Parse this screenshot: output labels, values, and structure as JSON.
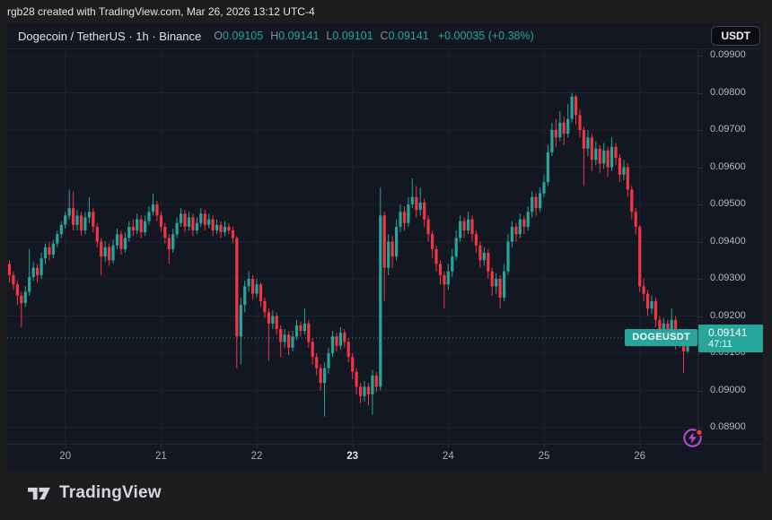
{
  "annotation_bar": {
    "text": "rgb28 created with TradingView.com, Mar 26, 2026 13:12 UTC-4"
  },
  "header": {
    "title": "Dogecoin / TetherUS · 1h · Binance",
    "ohlc": {
      "o": {
        "label": "O",
        "value": "0.09105"
      },
      "h": {
        "label": "H",
        "value": "0.09141"
      },
      "l": {
        "label": "L",
        "value": "0.09101"
      },
      "c": {
        "label": "C",
        "value": "0.09141"
      }
    },
    "change": "+0.00035 (+0.38%)",
    "currency_button": "USDT"
  },
  "price_line": {
    "symbol_label": "DOGEUSDT",
    "price": "0.09141",
    "countdown": "47:11"
  },
  "footer": {
    "brand": "TradingView"
  },
  "chart_data": {
    "type": "candlestick",
    "symbol": "DOGEUSDT",
    "exchange": "Binance",
    "interval": "1h",
    "up_color": "#26a69a",
    "down_color": "#f23645",
    "grid_color": "#1e2230",
    "last_price": 0.09141,
    "y_axis": {
      "ticks": [
        "0.09900",
        "0.09800",
        "0.09700",
        "0.09600",
        "0.09500",
        "0.09400",
        "0.09300",
        "0.09200",
        "0.09100",
        "0.09000",
        "0.08900"
      ]
    },
    "x_axis": {
      "labels": [
        {
          "text": "20",
          "candle_index": 14,
          "bold": false
        },
        {
          "text": "21",
          "candle_index": 38,
          "bold": false
        },
        {
          "text": "22",
          "candle_index": 62,
          "bold": false
        },
        {
          "text": "23",
          "candle_index": 86,
          "bold": true
        },
        {
          "text": "24",
          "candle_index": 110,
          "bold": false
        },
        {
          "text": "25",
          "candle_index": 134,
          "bold": false
        },
        {
          "text": "26",
          "candle_index": 158,
          "bold": false
        }
      ]
    },
    "candles": [
      [
        0.0934,
        0.0935,
        0.0929,
        0.0931
      ],
      [
        0.0931,
        0.0932,
        0.0927,
        0.09285
      ],
      [
        0.09285,
        0.09295,
        0.0923,
        0.09255
      ],
      [
        0.09255,
        0.09265,
        0.0917,
        0.09235
      ],
      [
        0.09235,
        0.0928,
        0.09225,
        0.09265
      ],
      [
        0.09265,
        0.0938,
        0.09255,
        0.09305
      ],
      [
        0.09305,
        0.09345,
        0.09295,
        0.0933
      ],
      [
        0.0933,
        0.0934,
        0.0929,
        0.0931
      ],
      [
        0.0931,
        0.0937,
        0.093,
        0.09355
      ],
      [
        0.09355,
        0.09395,
        0.0934,
        0.09385
      ],
      [
        0.09385,
        0.094,
        0.0935,
        0.09365
      ],
      [
        0.09365,
        0.09405,
        0.09355,
        0.09395
      ],
      [
        0.09395,
        0.0943,
        0.09385,
        0.0942
      ],
      [
        0.0942,
        0.09455,
        0.0941,
        0.09445
      ],
      [
        0.09445,
        0.0948,
        0.09435,
        0.0947
      ],
      [
        0.0947,
        0.0954,
        0.0946,
        0.0949
      ],
      [
        0.0949,
        0.09535,
        0.0943,
        0.09445
      ],
      [
        0.09445,
        0.09485,
        0.0943,
        0.0947
      ],
      [
        0.0947,
        0.0948,
        0.09415,
        0.0943
      ],
      [
        0.0943,
        0.0948,
        0.0942,
        0.09465
      ],
      [
        0.09465,
        0.0952,
        0.0945,
        0.0948
      ],
      [
        0.0948,
        0.0949,
        0.09425,
        0.0944
      ],
      [
        0.0944,
        0.0945,
        0.09385,
        0.094
      ],
      [
        0.094,
        0.0941,
        0.0931,
        0.0936
      ],
      [
        0.0936,
        0.094,
        0.09345,
        0.09385
      ],
      [
        0.09385,
        0.09395,
        0.09335,
        0.0935
      ],
      [
        0.0935,
        0.09405,
        0.0934,
        0.0939
      ],
      [
        0.0939,
        0.09435,
        0.0938,
        0.0942
      ],
      [
        0.0942,
        0.0943,
        0.09365,
        0.0938
      ],
      [
        0.0938,
        0.09425,
        0.0937,
        0.0941
      ],
      [
        0.0941,
        0.09455,
        0.094,
        0.0944
      ],
      [
        0.0944,
        0.0946,
        0.09415,
        0.0943
      ],
      [
        0.0943,
        0.09475,
        0.0942,
        0.0946
      ],
      [
        0.0946,
        0.0947,
        0.0941,
        0.09425
      ],
      [
        0.09425,
        0.0947,
        0.09415,
        0.09455
      ],
      [
        0.09455,
        0.09495,
        0.09445,
        0.0948
      ],
      [
        0.0948,
        0.0953,
        0.0947,
        0.095
      ],
      [
        0.095,
        0.0951,
        0.09455,
        0.0947
      ],
      [
        0.0947,
        0.0948,
        0.09425,
        0.0944
      ],
      [
        0.0944,
        0.0945,
        0.09395,
        0.0941
      ],
      [
        0.0941,
        0.0942,
        0.0934,
        0.0938
      ],
      [
        0.0938,
        0.09435,
        0.0937,
        0.0942
      ],
      [
        0.0942,
        0.09465,
        0.0941,
        0.0945
      ],
      [
        0.0945,
        0.0949,
        0.0944,
        0.09475
      ],
      [
        0.09475,
        0.09485,
        0.09425,
        0.0944
      ],
      [
        0.0944,
        0.0948,
        0.0943,
        0.09465
      ],
      [
        0.09465,
        0.09475,
        0.09415,
        0.0943
      ],
      [
        0.0943,
        0.09465,
        0.0942,
        0.0945
      ],
      [
        0.0945,
        0.0949,
        0.0944,
        0.09475
      ],
      [
        0.09475,
        0.09485,
        0.0943,
        0.09445
      ],
      [
        0.09445,
        0.09475,
        0.09435,
        0.0946
      ],
      [
        0.0946,
        0.0947,
        0.09415,
        0.0943
      ],
      [
        0.0943,
        0.0946,
        0.0942,
        0.09445
      ],
      [
        0.09445,
        0.09455,
        0.0941,
        0.09425
      ],
      [
        0.09425,
        0.09455,
        0.09415,
        0.0944
      ],
      [
        0.0944,
        0.0945,
        0.0942,
        0.0943
      ],
      [
        0.0943,
        0.0944,
        0.09395,
        0.0941
      ],
      [
        0.0941,
        0.09415,
        0.0906,
        0.09145
      ],
      [
        0.09145,
        0.0925,
        0.0907,
        0.0923
      ],
      [
        0.0923,
        0.09295,
        0.0921,
        0.0928
      ],
      [
        0.0928,
        0.0932,
        0.09265,
        0.093
      ],
      [
        0.093,
        0.0931,
        0.09245,
        0.0926
      ],
      [
        0.0926,
        0.093,
        0.0925,
        0.09285
      ],
      [
        0.09285,
        0.0929,
        0.09225,
        0.0924
      ],
      [
        0.0924,
        0.0925,
        0.09195,
        0.0921
      ],
      [
        0.0921,
        0.0922,
        0.0908,
        0.0918
      ],
      [
        0.0918,
        0.09215,
        0.09165,
        0.092
      ],
      [
        0.092,
        0.0921,
        0.0915,
        0.09165
      ],
      [
        0.09165,
        0.09175,
        0.0909,
        0.0913
      ],
      [
        0.0913,
        0.09165,
        0.09115,
        0.0915
      ],
      [
        0.0915,
        0.0916,
        0.09095,
        0.09115
      ],
      [
        0.09115,
        0.0916,
        0.09105,
        0.09145
      ],
      [
        0.09145,
        0.0919,
        0.09135,
        0.09175
      ],
      [
        0.09175,
        0.09185,
        0.09145,
        0.0916
      ],
      [
        0.0916,
        0.0922,
        0.0915,
        0.0918
      ],
      [
        0.0918,
        0.0919,
        0.09115,
        0.0913
      ],
      [
        0.0913,
        0.0914,
        0.0907,
        0.0909
      ],
      [
        0.0909,
        0.091,
        0.0904,
        0.0906
      ],
      [
        0.0906,
        0.0907,
        0.09,
        0.0902
      ],
      [
        0.0902,
        0.09075,
        0.0893,
        0.0906
      ],
      [
        0.0906,
        0.09115,
        0.09045,
        0.091
      ],
      [
        0.091,
        0.0916,
        0.0909,
        0.09145
      ],
      [
        0.09145,
        0.09155,
        0.09105,
        0.0912
      ],
      [
        0.0912,
        0.0917,
        0.0911,
        0.09155
      ],
      [
        0.09155,
        0.09165,
        0.09115,
        0.0913
      ],
      [
        0.0913,
        0.0914,
        0.09075,
        0.0909
      ],
      [
        0.0909,
        0.091,
        0.0903,
        0.0905
      ],
      [
        0.0905,
        0.0906,
        0.0899,
        0.0901
      ],
      [
        0.0901,
        0.0902,
        0.08965,
        0.08985
      ],
      [
        0.08985,
        0.09025,
        0.0897,
        0.0901
      ],
      [
        0.0901,
        0.0902,
        0.0896,
        0.0899
      ],
      [
        0.0899,
        0.09055,
        0.08935,
        0.0904
      ],
      [
        0.0904,
        0.0905,
        0.08995,
        0.0901
      ],
      [
        0.0901,
        0.09545,
        0.09,
        0.0947
      ],
      [
        0.0947,
        0.0948,
        0.0924,
        0.0933
      ],
      [
        0.0933,
        0.0942,
        0.0931,
        0.094
      ],
      [
        0.094,
        0.09415,
        0.0933,
        0.0936
      ],
      [
        0.0936,
        0.0946,
        0.0935,
        0.0944
      ],
      [
        0.0944,
        0.095,
        0.09425,
        0.0948
      ],
      [
        0.0948,
        0.09495,
        0.0943,
        0.0945
      ],
      [
        0.0945,
        0.0952,
        0.0944,
        0.095
      ],
      [
        0.095,
        0.0957,
        0.0949,
        0.0952
      ],
      [
        0.0952,
        0.0955,
        0.09465,
        0.09485
      ],
      [
        0.09485,
        0.09545,
        0.0947,
        0.09505
      ],
      [
        0.09505,
        0.09515,
        0.0944,
        0.0946
      ],
      [
        0.0946,
        0.0947,
        0.094,
        0.0942
      ],
      [
        0.0942,
        0.0943,
        0.09355,
        0.0938
      ],
      [
        0.0938,
        0.0939,
        0.0932,
        0.0934
      ],
      [
        0.0934,
        0.0935,
        0.09285,
        0.0931
      ],
      [
        0.0931,
        0.0932,
        0.0922,
        0.09285
      ],
      [
        0.09285,
        0.0934,
        0.0927,
        0.0932
      ],
      [
        0.0932,
        0.0938,
        0.09305,
        0.0936
      ],
      [
        0.0936,
        0.0943,
        0.0935,
        0.0941
      ],
      [
        0.0941,
        0.0947,
        0.094,
        0.09455
      ],
      [
        0.09455,
        0.09465,
        0.0941,
        0.0943
      ],
      [
        0.0943,
        0.0948,
        0.0942,
        0.0946
      ],
      [
        0.0946,
        0.0947,
        0.094,
        0.0942
      ],
      [
        0.0942,
        0.0943,
        0.0937,
        0.0939
      ],
      [
        0.0939,
        0.094,
        0.0933,
        0.0935
      ],
      [
        0.0935,
        0.09385,
        0.09335,
        0.0937
      ],
      [
        0.0937,
        0.0938,
        0.093,
        0.0932
      ],
      [
        0.0932,
        0.0933,
        0.09255,
        0.0928
      ],
      [
        0.0928,
        0.09315,
        0.0926,
        0.093
      ],
      [
        0.093,
        0.0931,
        0.0922,
        0.0925
      ],
      [
        0.0925,
        0.0934,
        0.0924,
        0.0932
      ],
      [
        0.0932,
        0.0942,
        0.0931,
        0.094
      ],
      [
        0.094,
        0.09455,
        0.09385,
        0.0944
      ],
      [
        0.0944,
        0.0945,
        0.094,
        0.0942
      ],
      [
        0.0942,
        0.09475,
        0.0941,
        0.0946
      ],
      [
        0.0946,
        0.0947,
        0.0942,
        0.0944
      ],
      [
        0.0944,
        0.09495,
        0.0943,
        0.0948
      ],
      [
        0.0948,
        0.09535,
        0.09465,
        0.0952
      ],
      [
        0.0952,
        0.0953,
        0.0947,
        0.0949
      ],
      [
        0.0949,
        0.09545,
        0.0948,
        0.0953
      ],
      [
        0.0953,
        0.0958,
        0.0952,
        0.0956
      ],
      [
        0.0956,
        0.0966,
        0.0955,
        0.0964
      ],
      [
        0.0964,
        0.0972,
        0.0963,
        0.097
      ],
      [
        0.097,
        0.0973,
        0.09655,
        0.0968
      ],
      [
        0.0968,
        0.0975,
        0.0967,
        0.0972
      ],
      [
        0.0972,
        0.09735,
        0.0966,
        0.0969
      ],
      [
        0.0969,
        0.0977,
        0.0968,
        0.0973
      ],
      [
        0.0973,
        0.098,
        0.0972,
        0.0979
      ],
      [
        0.0979,
        0.09795,
        0.09715,
        0.0974
      ],
      [
        0.0974,
        0.09755,
        0.0968,
        0.097
      ],
      [
        0.097,
        0.0971,
        0.0955,
        0.0965
      ],
      [
        0.0965,
        0.097,
        0.0963,
        0.0968
      ],
      [
        0.0968,
        0.0969,
        0.0959,
        0.0962
      ],
      [
        0.0962,
        0.0967,
        0.09605,
        0.0965
      ],
      [
        0.0965,
        0.0966,
        0.09585,
        0.0961
      ],
      [
        0.0961,
        0.09665,
        0.09595,
        0.09645
      ],
      [
        0.09645,
        0.09655,
        0.09575,
        0.096
      ],
      [
        0.096,
        0.0968,
        0.0959,
        0.09655
      ],
      [
        0.09655,
        0.09665,
        0.09605,
        0.09625
      ],
      [
        0.09625,
        0.09635,
        0.0956,
        0.0958
      ],
      [
        0.0958,
        0.0962,
        0.09565,
        0.096
      ],
      [
        0.096,
        0.0961,
        0.0952,
        0.0954
      ],
      [
        0.0954,
        0.0955,
        0.0946,
        0.0948
      ],
      [
        0.0948,
        0.0949,
        0.0942,
        0.0944
      ],
      [
        0.0944,
        0.09445,
        0.09265,
        0.0928
      ],
      [
        0.0928,
        0.093,
        0.0924,
        0.0926
      ],
      [
        0.0926,
        0.0927,
        0.092,
        0.0922
      ],
      [
        0.0922,
        0.09255,
        0.09205,
        0.0924
      ],
      [
        0.0924,
        0.0925,
        0.0917,
        0.0919
      ],
      [
        0.0919,
        0.092,
        0.0914,
        0.0916
      ],
      [
        0.0916,
        0.09195,
        0.09145,
        0.0918
      ],
      [
        0.0918,
        0.0919,
        0.0913,
        0.0915
      ],
      [
        0.0915,
        0.0922,
        0.0914,
        0.0919
      ],
      [
        0.0919,
        0.092,
        0.0911,
        0.0913
      ],
      [
        0.0913,
        0.09165,
        0.09115,
        0.0915
      ],
      [
        0.0915,
        0.0916,
        0.09048,
        0.09105
      ],
      [
        0.09105,
        0.09141,
        0.09101,
        0.09141
      ]
    ]
  }
}
